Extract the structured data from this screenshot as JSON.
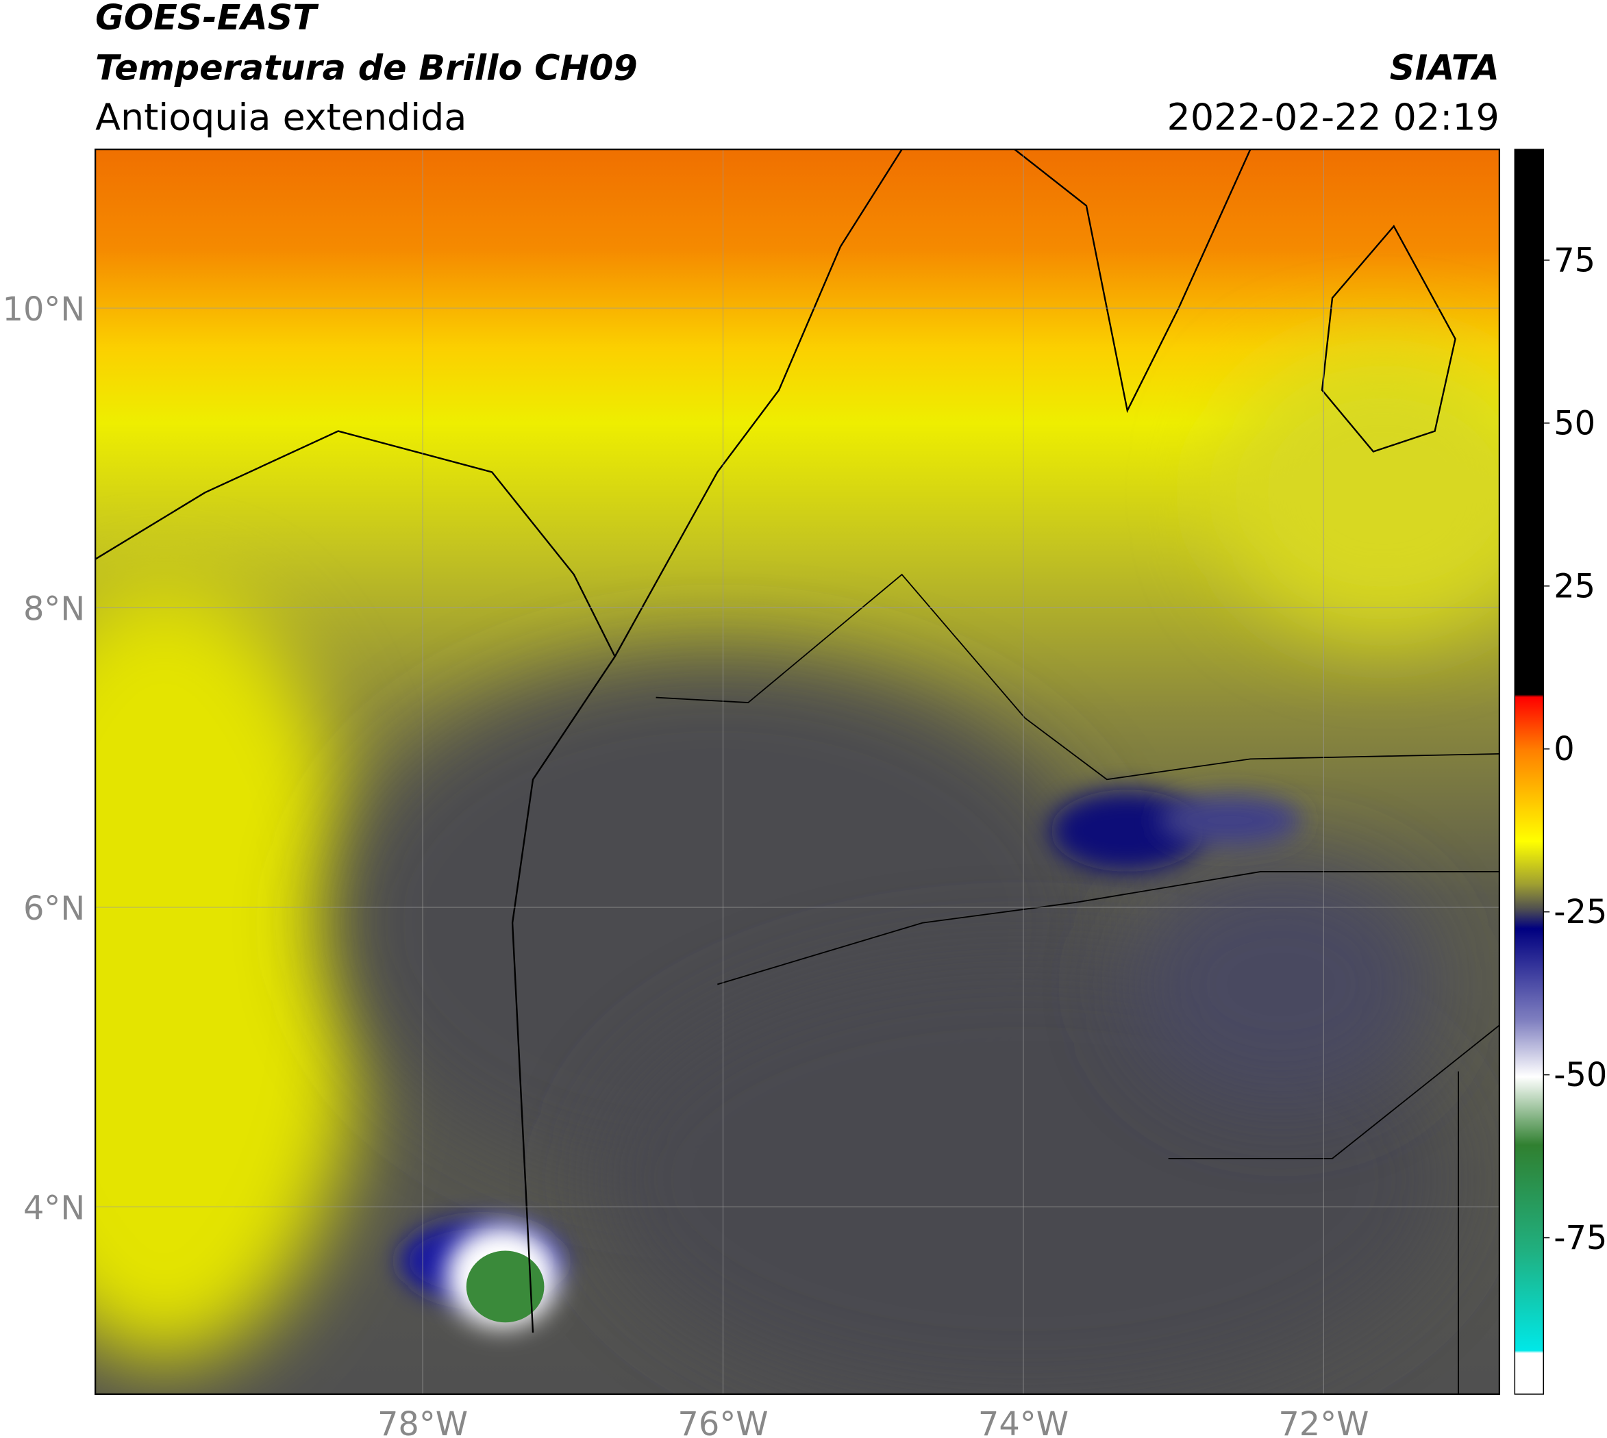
{
  "header": {
    "title_line1": "GOES-EAST",
    "title_line2": "Temperatura de Brillo CH09",
    "subtitle": "Antioquia extendida",
    "source": "SIATA",
    "datetime": "2022-02-22 02:19"
  },
  "map": {
    "xlim": [
      -80.18,
      -70.83
    ],
    "ylim": [
      2.75,
      11.06
    ],
    "xticks": [
      {
        "value": -78,
        "label": "78°W"
      },
      {
        "value": -76,
        "label": "76°W"
      },
      {
        "value": -74,
        "label": "74°W"
      },
      {
        "value": -72,
        "label": "72°W"
      }
    ],
    "yticks": [
      {
        "value": 4,
        "label": "4°N"
      },
      {
        "value": 6,
        "label": "6°N"
      },
      {
        "value": 8,
        "label": "8°N"
      },
      {
        "value": 10,
        "label": "10°N"
      }
    ],
    "grid": true
  },
  "colorbar": {
    "lim": [
      -99,
      92
    ],
    "ticks": [
      75,
      50,
      25,
      0,
      -25,
      -50,
      -75
    ]
  }
}
